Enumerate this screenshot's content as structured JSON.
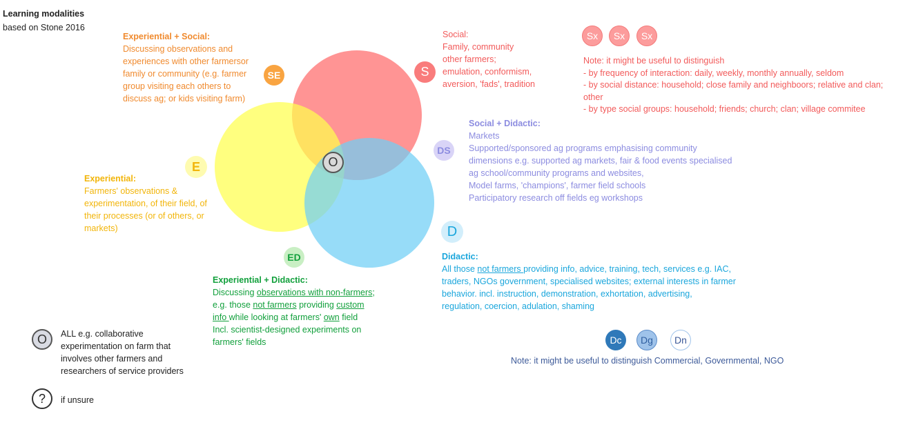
{
  "title": "Learning modalities",
  "subtitle": "based on Stone 2016",
  "colors": {
    "social": "#ff6b6b",
    "experiential": "#ffff4d",
    "didactic": "#6fcff5",
    "orange_text": "#f08a2e",
    "red_text": "#f25a5a",
    "purple_text": "#8c8ce0",
    "yellow_text": "#f2b50a",
    "blue_text": "#1aa6dc",
    "green_text": "#12a03c"
  },
  "badges": {
    "se": "SE",
    "s": "S",
    "sx": [
      "Sx",
      "Sx",
      "Sx"
    ],
    "ds": "DS",
    "e": "E",
    "o": "O",
    "d": "D",
    "ed": "ED",
    "dc": "Dc",
    "dg": "Dg",
    "dn": "Dn",
    "o_legend": "O",
    "unsure": "?"
  },
  "experiential_social": {
    "heading": "Experiential + Social:",
    "lines": [
      "Discussing observations and",
      "experiences with other farmersor",
      "family or community (e.g. farmer",
      "group visiting each others to",
      "discuss ag; or kids visiting farm)"
    ]
  },
  "social": {
    "heading": "Social:",
    "lines": [
      "Family, community",
      "other farmers;",
      "emulation, conformism,",
      "aversion, 'fads', tradition"
    ]
  },
  "social_note": {
    "lines": [
      "Note: it might be useful to distinguish",
      "- by frequency of interaction: daily, weekly, monthly annually, seldom",
      "- by social distance: household; close family and neighboors; relative and clan;",
      "other",
      "- by type social groups: household; friends; church; clan; village commitee"
    ]
  },
  "social_didactic": {
    "heading": "Social + Didactic:",
    "lines": [
      "Markets",
      "Supported/sponsored ag programs emphasising community",
      "dimensions e.g. supported ag markets, fair & food events specialised",
      "ag school/community programs and websites,",
      "Model farms,  'champions', farmer field schools",
      "Participatory research off fields eg workshops"
    ]
  },
  "experiential": {
    "heading": "Experiential:",
    "lines": [
      "Farmers'  observations &",
      "experimentation, of their field, of",
      "their processes (or of others, or",
      "markets)"
    ]
  },
  "didactic": {
    "heading": "Didactic:",
    "line1_a": "All those ",
    "line1_u": "not farmers ",
    "line1_b": "providing info, advice, training, tech, services e.g. IAC,",
    "lines": [
      "traders, NGOs government, specialised websites; external interests in farmer",
      "behavior. incl. instruction, demonstration, exhortation, advertising,",
      "regulation, coercion, adulation, shaming"
    ]
  },
  "experiential_didactic": {
    "heading": "Experiential + Didactic:",
    "l1_a": "Discussing ",
    "l1_u": "observations with non-farmers",
    "l1_b": ";",
    "l2_a": "e.g. those ",
    "l2_u1": "not farmers",
    "l2_b": " providing ",
    "l2_u2": "custom",
    "l3_u1": "info ",
    "l3_a": "while looking at farmers' ",
    "l3_u2": "own",
    "l3_b": " field",
    "l4": "Incl. scientist-designed experiments on",
    "l5": "farmers' fields"
  },
  "didactic_note": "Note: it might be useful to distinguish Commercial, Governmental, NGO",
  "all_legend": {
    "lines": [
      "ALL e.g. collaborative",
      "experimentation on farm that",
      "involves other farmers and",
      "researchers of service providers"
    ]
  },
  "unsure_legend": "if unsure"
}
